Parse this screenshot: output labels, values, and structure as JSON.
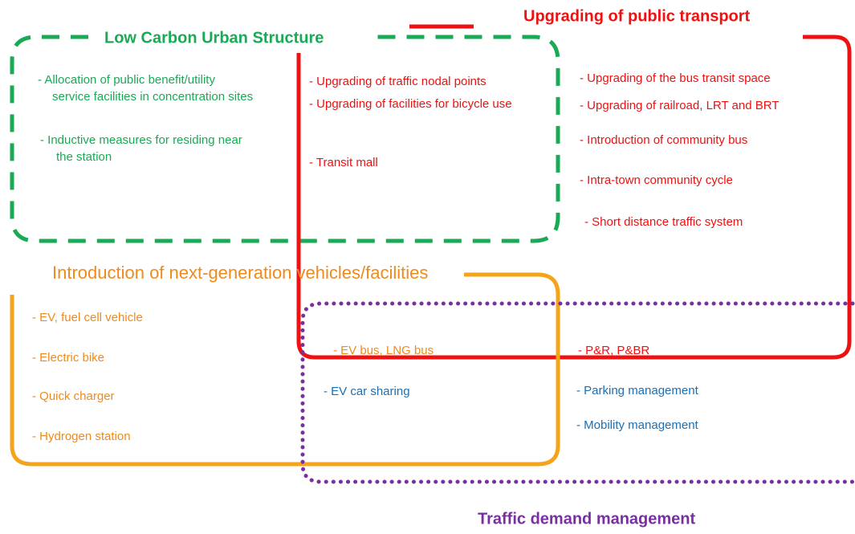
{
  "groups": [
    {
      "title": "Low Carbon Urban Structure",
      "items": [
        {
          "lines": [
            "-   Allocation of public benefit/utility",
            "service facilities in concentration sites"
          ]
        },
        {
          "lines": [
            "-   Inductive measures for residing near",
            "the station"
          ]
        }
      ]
    },
    {
      "title": "Upgrading of public transport",
      "items": [
        {
          "lines": [
            "- Upgrading of traffic nodal points"
          ]
        },
        {
          "lines": [
            "- Upgrading of facilities for bicycle use"
          ]
        },
        {
          "lines": [
            "- Transit mall"
          ]
        },
        {
          "lines": [
            "- Upgrading of the bus transit space"
          ]
        },
        {
          "lines": [
            "- Upgrading of railroad, LRT and BRT"
          ]
        },
        {
          "lines": [
            "- Introduction of community bus"
          ]
        },
        {
          "lines": [
            "- Intra-town community cycle"
          ]
        },
        {
          "lines": [
            "- Short distance traffic system"
          ]
        },
        {
          "lines": [
            "- P&R, P&BR"
          ]
        }
      ]
    },
    {
      "title": "Introduction of next-generation vehicles/facilities",
      "items": [
        {
          "lines": [
            "- EV, fuel cell vehicle"
          ]
        },
        {
          "lines": [
            "- Electric bike"
          ]
        },
        {
          "lines": [
            "- Quick charger"
          ]
        },
        {
          "lines": [
            "- Hydrogen station"
          ]
        },
        {
          "lines": [
            "- EV bus, LNG bus"
          ]
        }
      ]
    },
    {
      "title": "Traffic demand management",
      "items": [
        {
          "lines": [
            "- EV car sharing"
          ]
        },
        {
          "lines": [
            "- Parking management"
          ]
        },
        {
          "lines": [
            "- Mobility management"
          ]
        }
      ]
    }
  ]
}
